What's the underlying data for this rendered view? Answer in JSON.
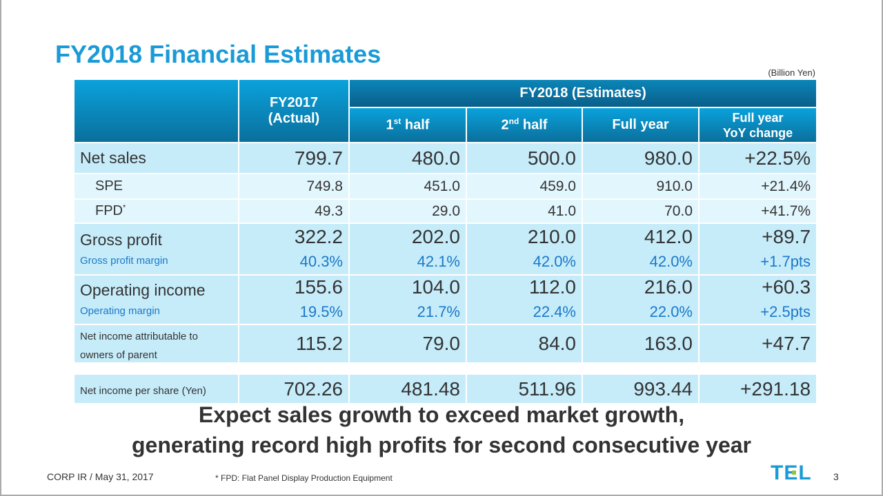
{
  "title": "FY2018 Financial Estimates",
  "unit": "(Billion Yen)",
  "header": {
    "fy2017_line1": "FY2017",
    "fy2017_line2": "(Actual)",
    "fy2018": "FY2018 (Estimates)",
    "h1_num": "1",
    "h1_sup": "st",
    "h1_text": " half",
    "h2_num": "2",
    "h2_sup": "nd",
    "h2_text": " half",
    "full": "Full year",
    "yoy_line1": "Full year",
    "yoy_line2": "YoY change"
  },
  "rows": [
    {
      "type": "main",
      "label": "Net sales",
      "values": [
        "799.7",
        "480.0",
        "500.0",
        "980.0",
        "+22.5%"
      ]
    },
    {
      "type": "sub",
      "label": "SPE",
      "values": [
        "749.8",
        "451.0",
        "459.0",
        "910.0",
        "+21.4%"
      ]
    },
    {
      "type": "sub",
      "label": "FPD",
      "sup": "*",
      "values": [
        "49.3",
        "29.0",
        "41.0",
        "70.0",
        "+41.7%"
      ]
    },
    {
      "type": "main",
      "label": "Gross profit",
      "sublabel": "Gross profit margin",
      "values": [
        "322.2",
        "202.0",
        "210.0",
        "412.0",
        "+89.7"
      ],
      "subvalues": [
        "40.3%",
        "42.1%",
        "42.0%",
        "42.0%",
        "+1.7pts"
      ]
    },
    {
      "type": "main",
      "label": "Operating income",
      "sublabel": "Operating margin",
      "values": [
        "155.6",
        "104.0",
        "112.0",
        "216.0",
        "+60.3"
      ],
      "subvalues": [
        "19.5%",
        "21.7%",
        "22.4%",
        "22.0%",
        "+2.5pts"
      ]
    },
    {
      "type": "main",
      "label": "Net income attributable to owners of parent",
      "small": true,
      "values": [
        "115.2",
        "79.0",
        "84.0",
        "163.0",
        "+47.7"
      ]
    },
    {
      "type": "gap"
    },
    {
      "type": "main",
      "label": "Net income per share (Yen)",
      "small": true,
      "values": [
        "702.26",
        "481.48",
        "511.96",
        "993.44",
        "+291.18"
      ]
    }
  ],
  "message": {
    "line1": "Expect sales growth to exceed market growth,",
    "line2": "generating record high profits for second consecutive year"
  },
  "footer": {
    "left": "CORP IR / May 31, 2017",
    "note": "* FPD: Flat Panel Display Production Equipment",
    "logo": "TEL",
    "page": "3"
  },
  "colors": {
    "accent": "#1a9ad6",
    "header": "#0a86b8",
    "row": "#c6ecfa",
    "subrow": "#e2f6fd",
    "margin_text": "#1a78c8"
  }
}
